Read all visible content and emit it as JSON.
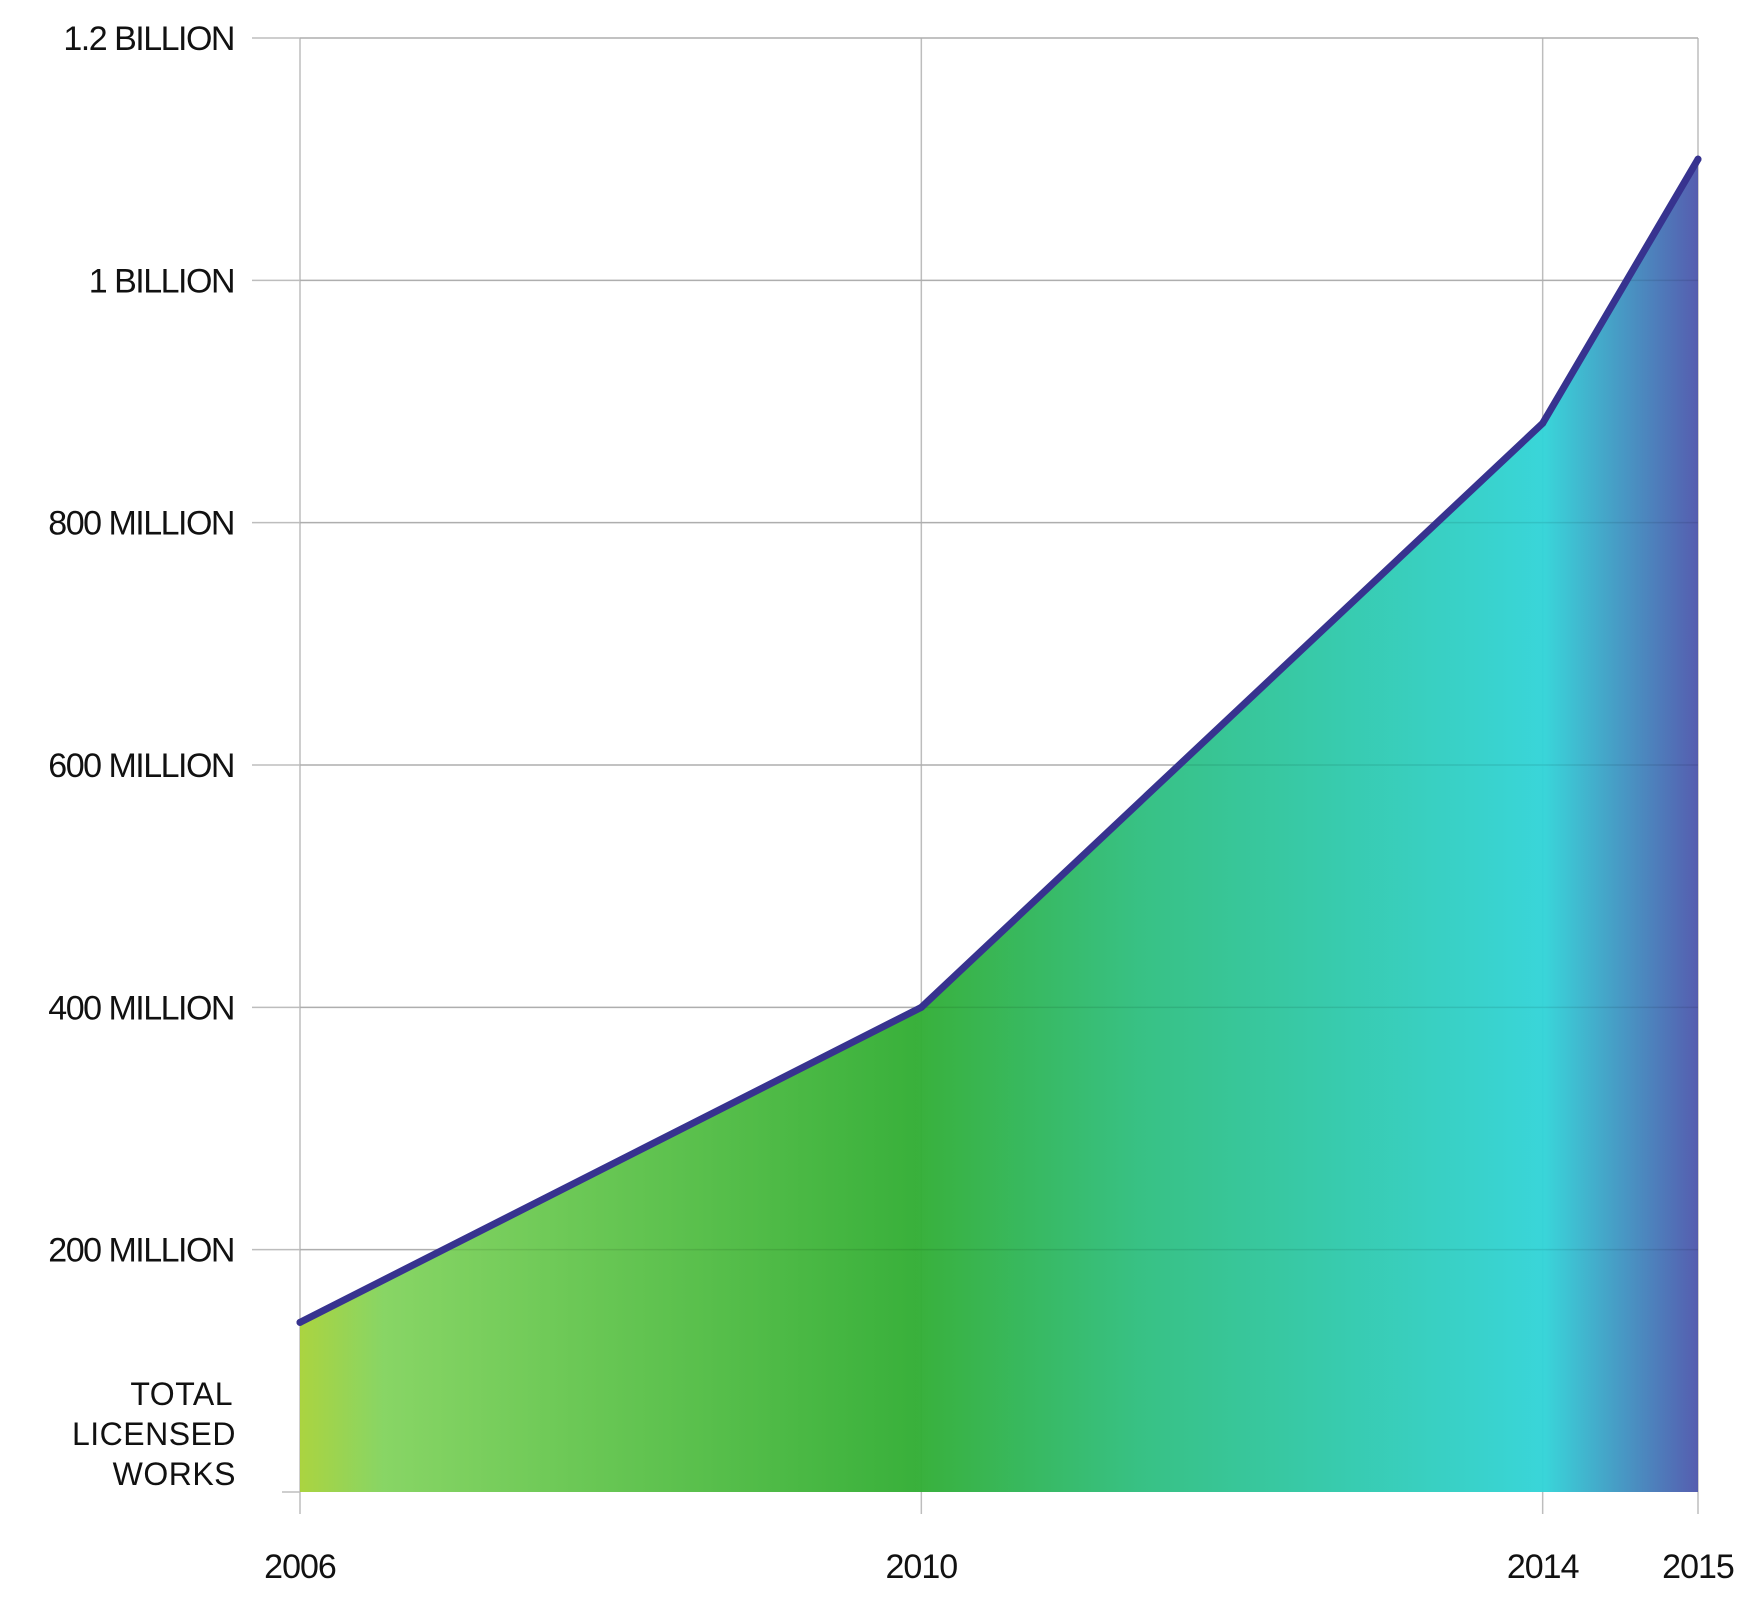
{
  "chart_data": {
    "type": "area",
    "title": "",
    "xlabel": "",
    "ylabel_lines": [
      "TOTAL",
      "LICENSED",
      "WORKS"
    ],
    "x": [
      2006,
      2010,
      2014,
      2015
    ],
    "xticks": [
      "2006",
      "2010",
      "2014",
      "2015"
    ],
    "series": [
      {
        "values": [
          140000000,
          400000000,
          882000000,
          1100000000
        ]
      }
    ],
    "ylim": [
      0,
      1200000000
    ],
    "xlim": [
      2006,
      2015
    ],
    "yticks": [
      {
        "value": 200000000,
        "label": "200 MILLION"
      },
      {
        "value": 400000000,
        "label": "400 MILLION"
      },
      {
        "value": 600000000,
        "label": "600 MILLION"
      },
      {
        "value": 800000000,
        "label": "800 MILLION"
      },
      {
        "value": 1000000000,
        "label": "1 BILLION"
      },
      {
        "value": 1200000000,
        "label": "1.2 BILLION"
      }
    ],
    "grid": true,
    "colors": {
      "line": "#37338f",
      "grid": "#bdbdbd",
      "fill_stops": [
        "#a8d23a",
        "#84d460",
        "#33ae35",
        "#31bf80",
        "#33d4d8",
        "#5058ad"
      ]
    }
  }
}
